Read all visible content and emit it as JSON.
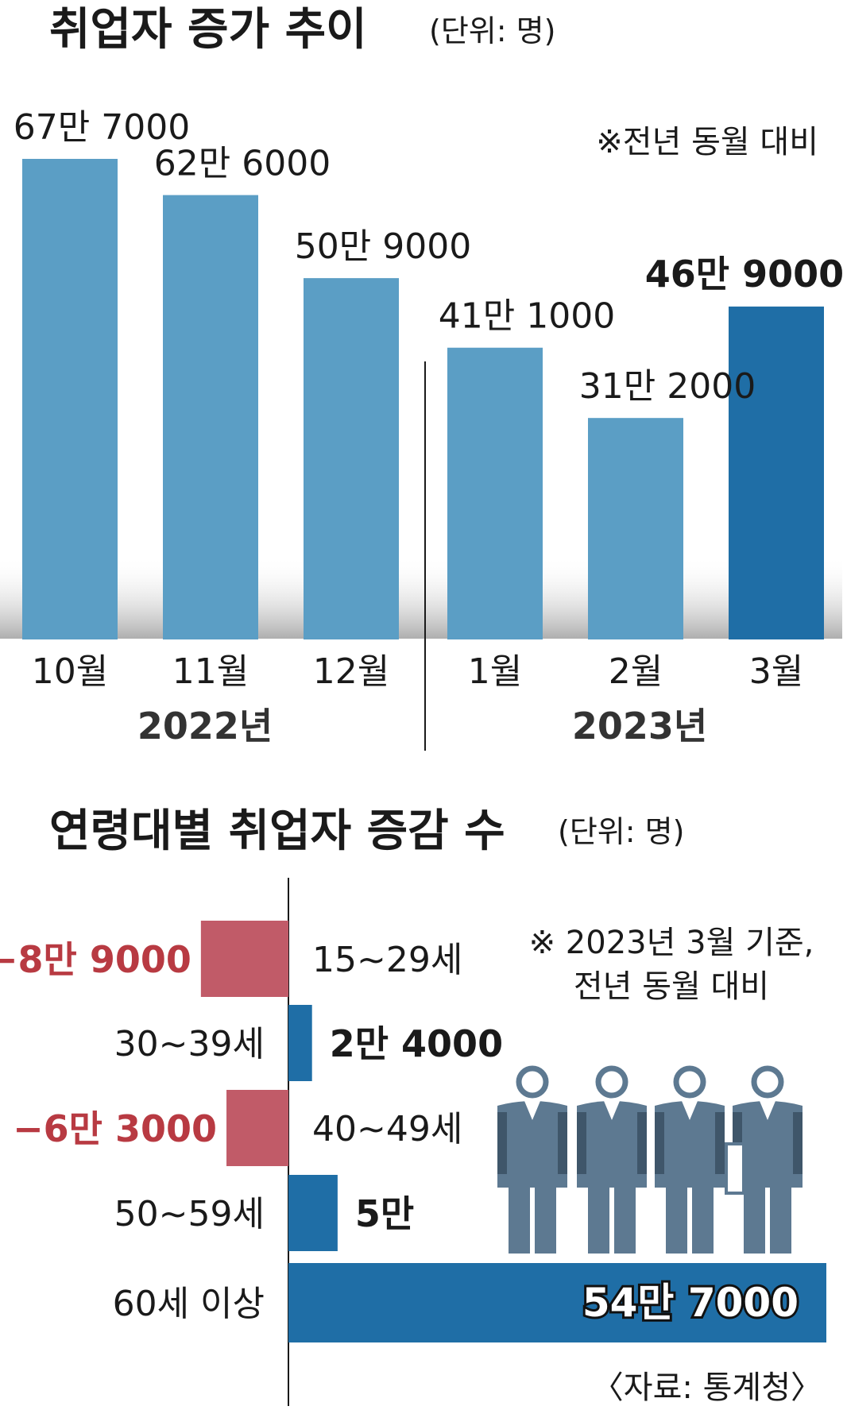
{
  "chart_data": [
    {
      "type": "bar",
      "title": "취업자 증가 추이",
      "unit": "(단위: 명)",
      "note": "※전년 동월 대비",
      "categories": [
        "10월",
        "11월",
        "12월",
        "1월",
        "2월",
        "3월"
      ],
      "values": [
        677000,
        626000,
        509000,
        411000,
        312000,
        469000
      ],
      "data_labels": [
        "67만 7000",
        "62만 6000",
        "50만 9000",
        "41만 1000",
        "31만 2000",
        "46만 9000"
      ],
      "year_groups": [
        {
          "label": "2022년",
          "categories": [
            "10월",
            "11월",
            "12월"
          ]
        },
        {
          "label": "2023년",
          "categories": [
            "1월",
            "2월",
            "3월"
          ]
        }
      ],
      "highlight_index": 5,
      "colors": {
        "normal": "#5b9ec5",
        "highlight": "#1f6ea6"
      }
    },
    {
      "type": "bar",
      "orientation": "horizontal",
      "title": "연령대별 취업자 증감 수",
      "unit": "(단위: 명)",
      "note_lines": [
        "※ 2023년 3월 기준,",
        "전년 동월 대비"
      ],
      "categories": [
        "15~29세",
        "30~39세",
        "40~49세",
        "50~59세",
        "60세 이상"
      ],
      "values": [
        -89000,
        24000,
        -63000,
        50000,
        547000
      ],
      "data_labels": [
        "−8만 9000",
        "2만 4000",
        "−6만 3000",
        "5만",
        "54만 7000"
      ],
      "colors": {
        "negative": "#c15b68",
        "positive": "#1f6ea6",
        "negative_text": "#b83a42"
      }
    }
  ],
  "source": "〈자료: 통계청〉",
  "icons": [
    "people-icon-group"
  ]
}
